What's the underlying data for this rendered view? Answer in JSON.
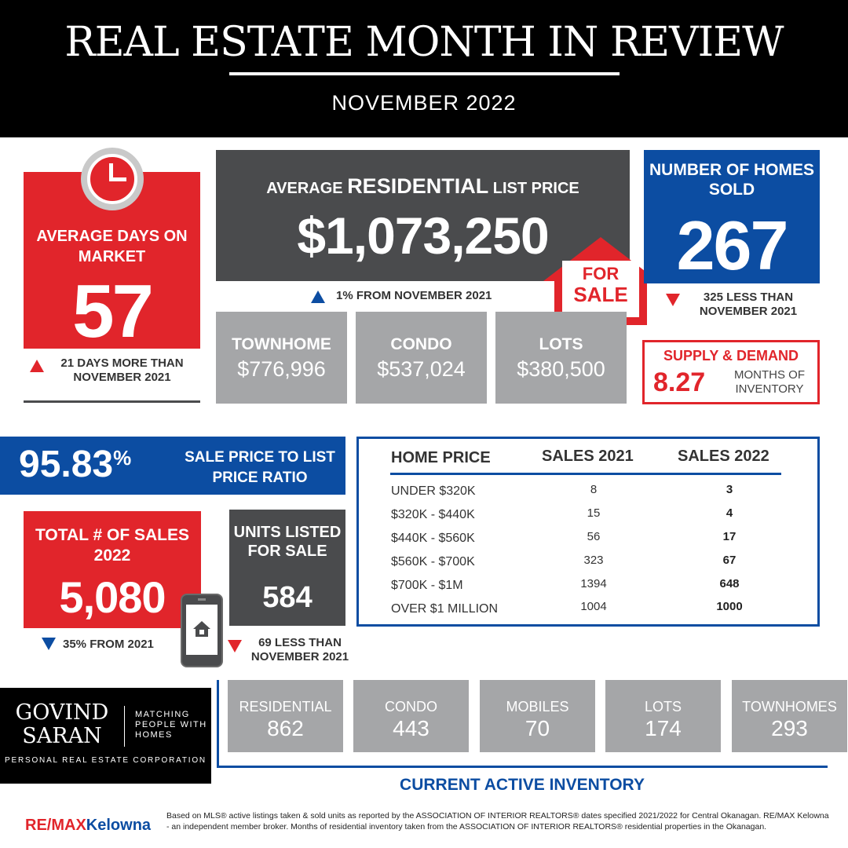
{
  "header": {
    "title": "REAL ESTATE MONTH IN REVIEW",
    "subtitle": "NOVEMBER 2022"
  },
  "days_on_market": {
    "label": "AVERAGE DAYS ON MARKET",
    "value": "57",
    "note": "21 DAYS MORE THAN NOVEMBER 2021",
    "direction": "up"
  },
  "residential_price": {
    "label_pre": "AVERAGE",
    "label_big": "RESIDENTIAL",
    "label_post": "LIST PRICE",
    "value": "$1,073,250",
    "note": "1% FROM NOVEMBER 2021",
    "direction": "up"
  },
  "for_sale_sign": {
    "line1": "FOR",
    "line2": "SALE"
  },
  "homes_sold": {
    "label": "NUMBER OF HOMES SOLD",
    "value": "267",
    "note": "325 LESS THAN NOVEMBER 2021",
    "direction": "down"
  },
  "property_prices": [
    {
      "label": "TOWNHOME",
      "value": "$776,996"
    },
    {
      "label": "CONDO",
      "value": "$537,024"
    },
    {
      "label": "LOTS",
      "value": "$380,500"
    }
  ],
  "supply_demand": {
    "label": "SUPPLY & DEMAND",
    "value": "8.27",
    "sub": "MONTHS OF INVENTORY"
  },
  "ratio": {
    "value": "95.83",
    "unit": "%",
    "label": "SALE PRICE TO LIST PRICE RATIO"
  },
  "total_sales": {
    "label": "TOTAL # OF SALES 2022",
    "value": "5,080",
    "note": "35% FROM 2021",
    "direction": "down"
  },
  "units_listed": {
    "label": "UNITS LISTED FOR SALE",
    "value": "584",
    "note": "69 LESS THAN NOVEMBER 2021",
    "direction": "down"
  },
  "price_table": {
    "headers": [
      "HOME PRICE",
      "SALES 2021",
      "SALES 2022"
    ],
    "rows": [
      {
        "range": "UNDER $320K",
        "sales_2021": "8",
        "sales_2022": "3"
      },
      {
        "range": "$320K - $440K",
        "sales_2021": "15",
        "sales_2022": "4"
      },
      {
        "range": "$440K - $560K",
        "sales_2021": "56",
        "sales_2022": "17"
      },
      {
        "range": "$560K - $700K",
        "sales_2021": "323",
        "sales_2022": "67"
      },
      {
        "range": "$700K - $1M",
        "sales_2021": "1394",
        "sales_2022": "648"
      },
      {
        "range": "OVER $1 MILLION",
        "sales_2021": "1004",
        "sales_2022": "1000"
      }
    ]
  },
  "brand": {
    "name_line1": "GOVIND",
    "name_line2": "SARAN",
    "tagline": "MATCHING PEOPLE WITH HOMES",
    "subtitle": "PERSONAL REAL ESTATE CORPORATION"
  },
  "inventory": {
    "title": "CURRENT ACTIVE INVENTORY",
    "items": [
      {
        "label": "RESIDENTIAL",
        "value": "862"
      },
      {
        "label": "CONDO",
        "value": "443"
      },
      {
        "label": "MOBILES",
        "value": "70"
      },
      {
        "label": "LOTS",
        "value": "174"
      },
      {
        "label": "TOWNHOMES",
        "value": "293"
      }
    ]
  },
  "footer": {
    "remax_red": "RE/MAX",
    "remax_blue": "Kelowna",
    "disclaimer": "Based on MLS® active listings taken & sold units as reported by the ASSOCIATION OF INTERIOR REALTORS® dates specified 2021/2022 for Central Okanagan. RE/MAX Kelowna - an independent member broker. Months of residential inventory taken from the ASSOCIATION OF INTERIOR REALTORS® residential properties in the Okanagan."
  },
  "colors": {
    "red": "#e1252b",
    "blue": "#0c4da2",
    "dark_gray": "#4a4b4d",
    "light_gray": "#a5a6a8",
    "black": "#000000"
  }
}
